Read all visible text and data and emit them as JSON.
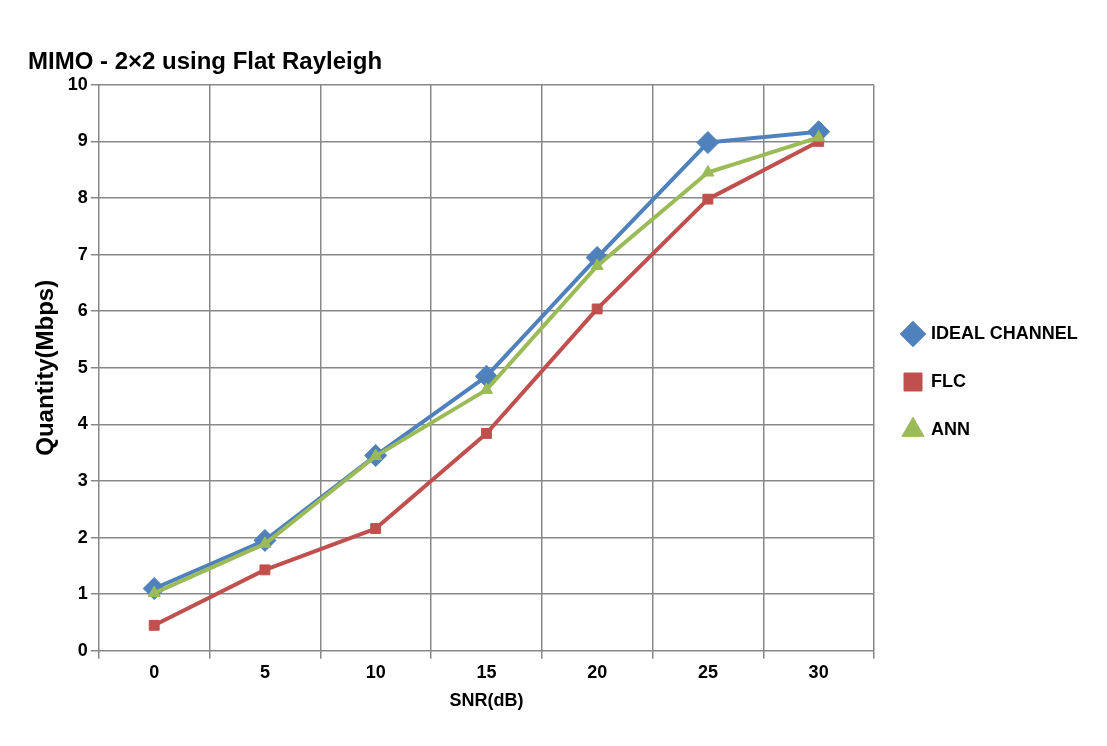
{
  "chart_data": {
    "type": "line",
    "title": "MIMO - 2×2 using Flat Rayleigh",
    "xlabel": "SNR(dB)",
    "ylabel": "Quantity(Mbps)",
    "categories": [
      "0",
      "5",
      "10",
      "15",
      "20",
      "25",
      "30"
    ],
    "series": [
      {
        "name": "IDEAL CHANNEL",
        "color": "#4f81bd",
        "marker": "diamond",
        "values": [
          1.1,
          1.95,
          3.45,
          4.85,
          6.95,
          8.98,
          9.17
        ]
      },
      {
        "name": "FLC",
        "color": "#c0504d",
        "marker": "square",
        "values": [
          0.45,
          1.43,
          2.16,
          3.84,
          6.04,
          7.98,
          9.0
        ]
      },
      {
        "name": "ANN",
        "color": "#9bbb59",
        "marker": "triangle",
        "values": [
          1.02,
          1.89,
          3.44,
          4.61,
          6.8,
          8.45,
          9.07
        ]
      }
    ],
    "ylim": [
      0,
      10
    ],
    "yticks": [
      0,
      1,
      2,
      3,
      4,
      5,
      6,
      7,
      8,
      9,
      10
    ],
    "grid": true,
    "legend": "right"
  }
}
